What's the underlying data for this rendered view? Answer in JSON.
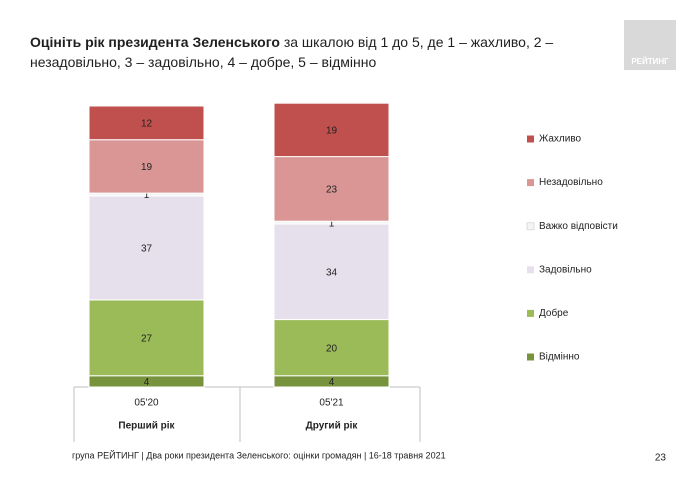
{
  "chart_data": {
    "type": "stacked-bar",
    "title": "Оцініть рік президента Зеленського",
    "subtitle": "за шкалою від 1 до 5, де 1 – жахливо, 2 – незадовільно, 3 – задовільно, 4 – добре, 5 – відмінно",
    "categories": [
      "05'20",
      "05'21"
    ],
    "group_labels": [
      "Перший рік",
      "Другий рік"
    ],
    "series": [
      {
        "name": "Відмінно",
        "color": "#77933c",
        "values": [
          4,
          4
        ]
      },
      {
        "name": "Добре",
        "color": "#9bbb59",
        "values": [
          27,
          20
        ]
      },
      {
        "name": "Задовільно",
        "color": "#e6e0ec",
        "values": [
          37,
          34
        ]
      },
      {
        "name": "Важко відповісти",
        "color": "#f4f4f4",
        "values": [
          1,
          1
        ]
      },
      {
        "name": "Незадовільно",
        "color": "#d99694",
        "values": [
          19,
          23
        ]
      },
      {
        "name": "Жахливо",
        "color": "#c0504d",
        "values": [
          12,
          19
        ]
      }
    ]
  },
  "logo": "РЕЙТИНГ",
  "footer": "група РЕЙТИНГ | Два роки президента Зеленського: оцінки громадян  | 16-18 травня 2021",
  "page_number": "23"
}
